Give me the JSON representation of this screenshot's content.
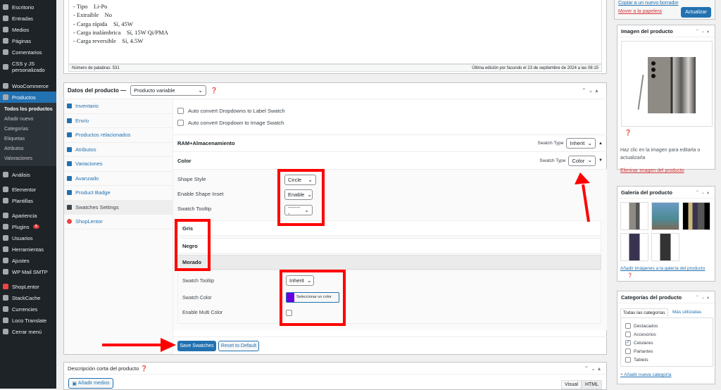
{
  "sidebar": {
    "items": [
      {
        "label": "Escritorio",
        "icon": "dashboard-icon"
      },
      {
        "label": "Entradas",
        "icon": "pin-icon"
      },
      {
        "label": "Medios",
        "icon": "media-icon"
      },
      {
        "label": "Páginas",
        "icon": "page-icon"
      },
      {
        "label": "Comentarios",
        "icon": "comment-icon"
      },
      {
        "label": "CSS y JS personalizado",
        "icon": "plus-circle-icon"
      },
      {
        "label": "WooCommerce",
        "icon": "woocommerce-icon"
      },
      {
        "label": "Productos",
        "icon": "archive-icon",
        "current": true
      }
    ],
    "submenu": [
      "Todos los productos",
      "Añadir nuevo",
      "Categorías",
      "Etiquetas",
      "Atributos",
      "Valoraciones"
    ],
    "items2": [
      {
        "label": "Análisis",
        "icon": "chart-icon"
      },
      {
        "label": "Elementor",
        "icon": "elementor-icon"
      },
      {
        "label": "Plantillas",
        "icon": "folder-icon"
      },
      {
        "label": "Apariencia",
        "icon": "brush-icon"
      },
      {
        "label": "Plugins",
        "icon": "plugin-icon",
        "badge": "6"
      },
      {
        "label": "Usuarios",
        "icon": "user-icon"
      },
      {
        "label": "Herramientas",
        "icon": "wrench-icon"
      },
      {
        "label": "Ajustes",
        "icon": "settings-icon"
      },
      {
        "label": "WP Mail SMTP",
        "icon": "mail-icon"
      },
      {
        "label": "ShopLentor",
        "icon": "shoplentor-icon"
      },
      {
        "label": "StackCache",
        "icon": "gear-icon"
      },
      {
        "label": "Currencies",
        "icon": "gear-icon"
      },
      {
        "label": "Loco Translate",
        "icon": "translate-icon"
      },
      {
        "label": "Cerrar menú",
        "icon": "collapse-icon"
      }
    ]
  },
  "editor": {
    "lines": [
      "- Tipo    Li-Po",
      "- Extraíble    No",
      "- Carga rápida    Sí, 45W",
      "- Carga inalámbrica    Sí, 15W Qi/PMA",
      "- Carga reversible    Sí, 4.5W"
    ],
    "word_count": "Número de palabras: 531",
    "last_edit": "Última edición por facundo el 23 de septiembre de 2024 a las 08:15"
  },
  "product_data": {
    "title": "Datos del producto —",
    "type": "Producto variable",
    "tabs": [
      "Inventario",
      "Envío",
      "Productos relacionados",
      "Atributos",
      "Variaciones",
      "Avanzado",
      "Product Badge",
      "Swatches Settings",
      "ShopLentor"
    ],
    "active_tab": "Swatches Settings",
    "auto1": "Auto convert Dropdowns to Label Swatch",
    "auto2": "Auto convert Dropdown to Image Swatch",
    "attr1": {
      "name": "RAM+Almacenamiento",
      "type_label": "Swatch Type",
      "type": "Inherit"
    },
    "attr2": {
      "name": "Color",
      "type_label": "Swatch Type",
      "type": "Color"
    },
    "shape_style_label": "Shape Style",
    "shape_style": "Circle",
    "inset_label": "Enable Shape Inset",
    "inset": "Enable",
    "tooltip_label": "Swatch Tooltip",
    "tooltip": "--------",
    "terms": [
      "Gris",
      "Negro",
      "Morado"
    ],
    "term_tooltip_label": "Swatch Tooltip",
    "term_tooltip": "Inherit",
    "term_color_label": "Swatch Color",
    "term_color_btn": "Seleccionar un color",
    "term_color": "#6a00e0",
    "multi_label": "Enable Multi Color",
    "save": "Save Swatches",
    "reset": "Reset to Default"
  },
  "short_desc": {
    "title": "Descripción corta del producto",
    "add_media": "Añadir medios",
    "visual": "Visual",
    "html": "HTML"
  },
  "publish": {
    "copy": "Copiar a un nuevo borrador",
    "trash": "Mover a la papelera",
    "update": "Actualizar"
  },
  "image_box": {
    "title": "Imagen del producto",
    "hint": "Haz clic en la imagen para editarla o actualizarla",
    "remove": "Eliminar imagen del producto"
  },
  "gallery": {
    "title": "Galería del producto",
    "add": "Añadir imágenes a la galería del producto"
  },
  "categories": {
    "title": "Categorías del producto",
    "tab_all": "Todas las categorías",
    "tab_used": "Más utilizadas",
    "items": [
      {
        "label": "Destacados",
        "checked": false
      },
      {
        "label": "Accesorios",
        "checked": false
      },
      {
        "label": "Celulares",
        "checked": true
      },
      {
        "label": "Parlantes",
        "checked": false
      },
      {
        "label": "Tablets",
        "checked": false
      }
    ],
    "add": "+ Añadir nueva categoría"
  },
  "colors": {
    "accent": "#2271b1",
    "sidebar": "#1d2327",
    "annotation": "#ff0000"
  }
}
